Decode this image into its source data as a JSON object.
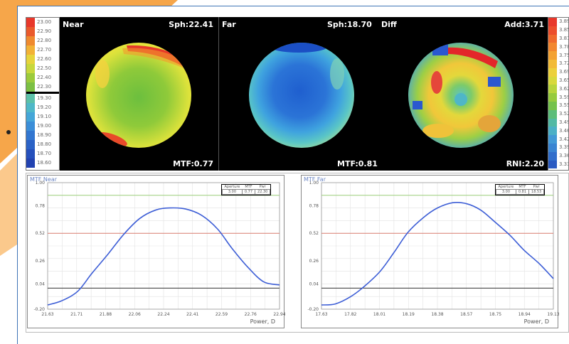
{
  "colors": {
    "accent_orange": "#f6a64a",
    "frame_blue": "#3d74b6",
    "curve": "#3d5ed6",
    "line_green": "#9ccf7c",
    "line_red": "#d97b6f",
    "line_black": "#333333"
  },
  "left_legend": [
    "23.00",
    "22.90",
    "22.80",
    "22.70",
    "22.60",
    "22.50",
    "22.40",
    "22.30",
    "",
    "19.30",
    "19.20",
    "19.10",
    "19.00",
    "18.90",
    "18.80",
    "18.70",
    "18.60"
  ],
  "right_legend": [
    "3.89",
    "3.85",
    "3.81",
    "3.78",
    "3.75",
    "3.72",
    "3.69",
    "3.65",
    "3.62",
    "3.59",
    "3.55",
    "3.52",
    "3.49",
    "3.46",
    "3.42",
    "3.39",
    "3.36",
    "3.33"
  ],
  "maps": {
    "near": {
      "label": "Near",
      "sph": "Sph:22.41",
      "mtf": "MTF:0.77"
    },
    "far": {
      "label": "Far",
      "sph": "Sph:18.70",
      "mtf": "MTF:0.81"
    },
    "diff": {
      "label": "Diff",
      "add": "Add:3.71",
      "rni": "RNI:2.20"
    }
  },
  "chart_data": [
    {
      "type": "line",
      "title": "MTF Near",
      "xlabel": "Power, D",
      "ylabel": "",
      "y_ticks": [
        "1.00",
        "0.78",
        "0.52",
        "0.26",
        "0.04",
        "-0.20"
      ],
      "x_ticks": [
        "21.63",
        "21.71",
        "21.88",
        "22.06",
        "22.24",
        "22.41",
        "22.59",
        "22.76",
        "22.94"
      ],
      "ylim": [
        -0.2,
        1.0
      ],
      "xlim": [
        21.63,
        22.94
      ],
      "grid": true,
      "ref_lines": [
        {
          "y": 0.88,
          "color": "green"
        },
        {
          "y": 0.52,
          "color": "red"
        },
        {
          "y": 0.0,
          "color": "black"
        }
      ],
      "x": [
        21.63,
        21.71,
        21.8,
        21.88,
        21.97,
        22.06,
        22.15,
        22.24,
        22.32,
        22.41,
        22.5,
        22.59,
        22.67,
        22.76,
        22.85,
        22.94
      ],
      "y": [
        -0.16,
        -0.12,
        -0.03,
        0.14,
        0.32,
        0.51,
        0.66,
        0.74,
        0.76,
        0.75,
        0.69,
        0.56,
        0.38,
        0.2,
        0.06,
        0.03
      ],
      "info": {
        "headers": [
          "Aperture",
          "MTF",
          "Pwr"
        ],
        "values": [
          "3.00",
          "0.77",
          "22.30"
        ]
      }
    },
    {
      "type": "line",
      "title": "MTF Far",
      "xlabel": "Power, D",
      "ylabel": "",
      "y_ticks": [
        "1.00",
        "0.78",
        "0.52",
        "0.26",
        "0.04",
        "-0.20"
      ],
      "x_ticks": [
        "17.63",
        "17.82",
        "18.01",
        "18.19",
        "18.38",
        "18.57",
        "18.75",
        "18.94",
        "19.13"
      ],
      "ylim": [
        -0.2,
        1.0
      ],
      "xlim": [
        17.63,
        19.13
      ],
      "grid": true,
      "ref_lines": [
        {
          "y": 0.88,
          "color": "green"
        },
        {
          "y": 0.52,
          "color": "red"
        },
        {
          "y": 0.0,
          "color": "black"
        }
      ],
      "x": [
        17.63,
        17.72,
        17.82,
        17.91,
        18.01,
        18.1,
        18.19,
        18.29,
        18.38,
        18.48,
        18.57,
        18.66,
        18.75,
        18.85,
        18.94,
        19.04,
        19.13
      ],
      "y": [
        -0.16,
        -0.15,
        -0.08,
        0.02,
        0.16,
        0.34,
        0.53,
        0.67,
        0.76,
        0.81,
        0.8,
        0.74,
        0.63,
        0.5,
        0.36,
        0.23,
        0.09
      ],
      "info": {
        "headers": [
          "Aperture",
          "MTF",
          "Pwr"
        ],
        "values": [
          "3.00",
          "0.81",
          "18.53"
        ]
      }
    }
  ]
}
